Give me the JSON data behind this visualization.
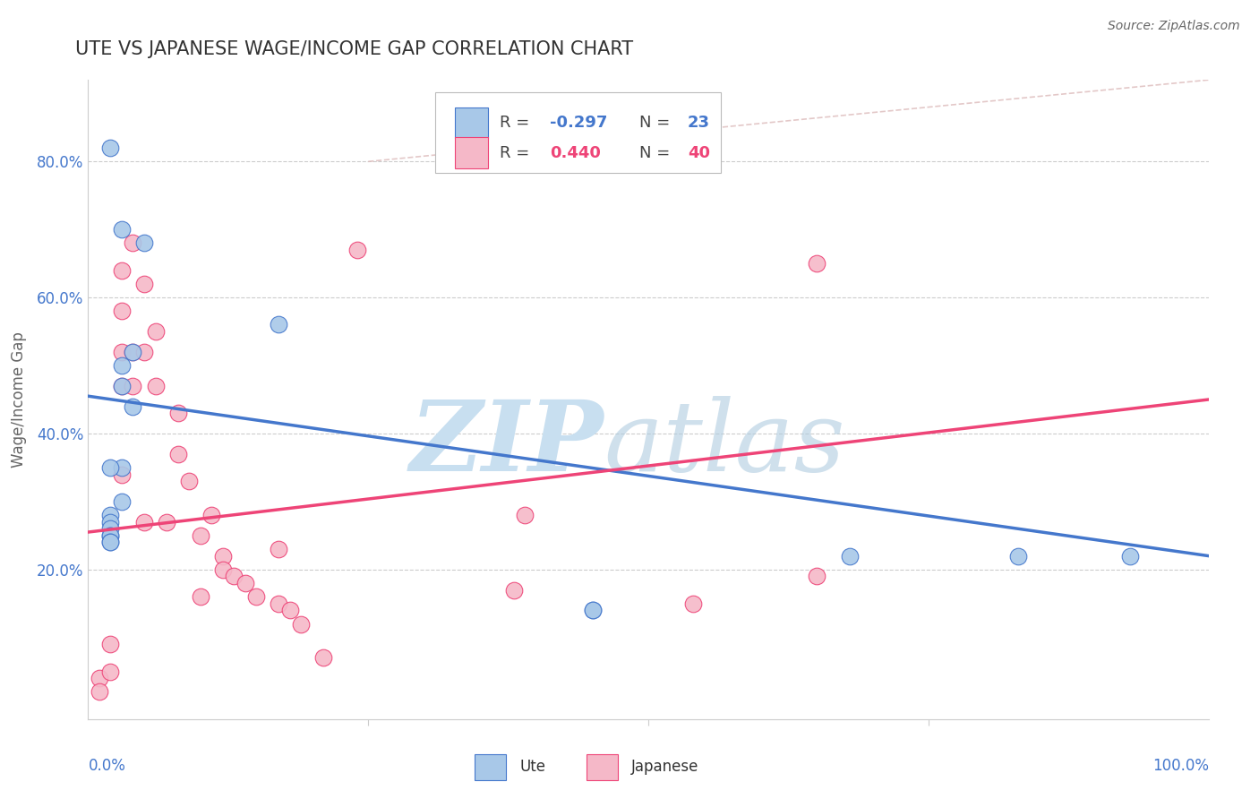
{
  "title": "UTE VS JAPANESE WAGE/INCOME GAP CORRELATION CHART",
  "source": "Source: ZipAtlas.com",
  "ylabel": "Wage/Income Gap",
  "ytick_labels": [
    "20.0%",
    "40.0%",
    "60.0%",
    "80.0%"
  ],
  "ytick_values": [
    0.2,
    0.4,
    0.6,
    0.8
  ],
  "xlim": [
    0.0,
    1.0
  ],
  "ylim": [
    -0.02,
    0.92
  ],
  "blue_color": "#a8c8e8",
  "pink_color": "#f5b8c8",
  "blue_line_color": "#4477cc",
  "pink_line_color": "#ee4477",
  "ref_line_color": "#ddbbbb",
  "watermark_zip_color": "#c8dff0",
  "watermark_atlas_color": "#b0cce0",
  "ute_x": [
    0.02,
    0.03,
    0.05,
    0.04,
    0.03,
    0.03,
    0.04,
    0.03,
    0.02,
    0.03,
    0.02,
    0.02,
    0.02,
    0.02,
    0.02,
    0.02,
    0.02,
    0.17,
    0.45,
    0.68,
    0.83,
    0.93,
    0.45
  ],
  "ute_y": [
    0.82,
    0.7,
    0.68,
    0.52,
    0.5,
    0.47,
    0.44,
    0.35,
    0.35,
    0.3,
    0.28,
    0.27,
    0.26,
    0.25,
    0.25,
    0.24,
    0.24,
    0.56,
    0.14,
    0.22,
    0.22,
    0.22,
    0.14
  ],
  "japanese_x": [
    0.01,
    0.02,
    0.02,
    0.03,
    0.03,
    0.03,
    0.03,
    0.03,
    0.04,
    0.04,
    0.04,
    0.05,
    0.05,
    0.05,
    0.06,
    0.06,
    0.07,
    0.08,
    0.08,
    0.09,
    0.1,
    0.1,
    0.11,
    0.12,
    0.12,
    0.13,
    0.14,
    0.15,
    0.17,
    0.17,
    0.18,
    0.19,
    0.21,
    0.24,
    0.39,
    0.38,
    0.54,
    0.65,
    0.65,
    0.01
  ],
  "japanese_y": [
    0.04,
    0.05,
    0.09,
    0.64,
    0.58,
    0.52,
    0.47,
    0.34,
    0.68,
    0.52,
    0.47,
    0.62,
    0.52,
    0.27,
    0.55,
    0.47,
    0.27,
    0.43,
    0.37,
    0.33,
    0.25,
    0.16,
    0.28,
    0.22,
    0.2,
    0.19,
    0.18,
    0.16,
    0.23,
    0.15,
    0.14,
    0.12,
    0.07,
    0.67,
    0.28,
    0.17,
    0.15,
    0.19,
    0.65,
    0.02
  ],
  "blue_line_x0": 0.0,
  "blue_line_y0": 0.455,
  "blue_line_x1": 1.0,
  "blue_line_y1": 0.22,
  "pink_line_x0": 0.0,
  "pink_line_y0": 0.255,
  "pink_line_x1": 1.0,
  "pink_line_y1": 0.45,
  "ref_line_x0": 0.25,
  "ref_line_y0": 0.8,
  "ref_line_x1": 1.0,
  "ref_line_y1": 0.92
}
